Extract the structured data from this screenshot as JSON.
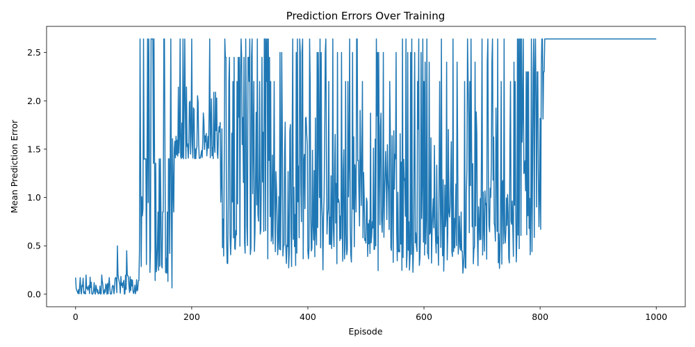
{
  "chart_data": {
    "type": "line",
    "title": "Prediction Errors Over Training",
    "xlabel": "Episode",
    "ylabel": "Mean Prediction Error",
    "xlim": [
      -50,
      1050
    ],
    "ylim": [
      -0.13,
      2.77
    ],
    "xticks": [
      0,
      200,
      400,
      600,
      800,
      1000
    ],
    "xtick_labels": [
      "0",
      "200",
      "400",
      "600",
      "800",
      "1000"
    ],
    "yticks": [
      0.0,
      0.5,
      1.0,
      1.5,
      2.0,
      2.5
    ],
    "ytick_labels": [
      "0.0",
      "0.5",
      "1.0",
      "1.5",
      "2.0",
      "2.5"
    ],
    "grid": false,
    "legend": "none",
    "series": [
      {
        "color": "#1f77b4",
        "phases": [
          {
            "x_start": 0,
            "x_end": 110,
            "low": 0.0,
            "high": 0.35,
            "spike_prob": 0.06,
            "spike_values": [
              0.5,
              0.45
            ]
          },
          {
            "x_start": 110,
            "x_end": 170,
            "low": 0.0,
            "high": 2.64,
            "spike_prob": 0.5,
            "spike_values": [
              2.64,
              1.4,
              0.85
            ]
          },
          {
            "x_start": 170,
            "x_end": 250,
            "low": 1.4,
            "high": 2.64,
            "spike_prob": 0.1,
            "spike_values": [
              2.64
            ]
          },
          {
            "x_start": 250,
            "x_end": 350,
            "low": 0.3,
            "high": 2.64,
            "spike_prob": 0.4,
            "spike_values": [
              2.64,
              2.45,
              2.2
            ]
          },
          {
            "x_start": 350,
            "x_end": 600,
            "low": 0.2,
            "high": 2.64,
            "spike_prob": 0.2,
            "spike_values": [
              2.64,
              2.5,
              2.2
            ]
          },
          {
            "x_start": 600,
            "x_end": 760,
            "low": 0.2,
            "high": 2.64,
            "spike_prob": 0.18,
            "spike_values": [
              2.64,
              2.4,
              2.2
            ]
          },
          {
            "x_start": 760,
            "x_end": 808,
            "low": 0.4,
            "high": 2.64,
            "spike_prob": 0.55,
            "spike_values": [
              2.64,
              2.3
            ]
          },
          {
            "x_start": 808,
            "x_end": 1000,
            "low": 2.64,
            "high": 2.64,
            "spike_prob": 0.0,
            "spike_values": [
              2.64
            ]
          }
        ]
      }
    ]
  }
}
